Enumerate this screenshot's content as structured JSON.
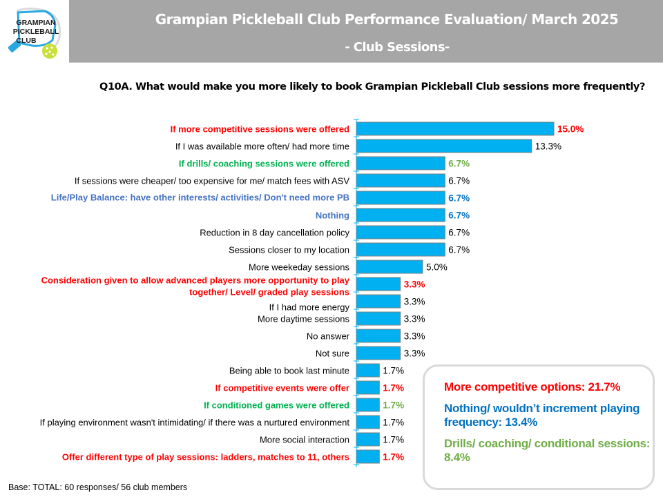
{
  "header": {
    "title": "Grampian Pickleball Club Performance Evaluation/ March 2025",
    "subtitle": "- Club Sessions-"
  },
  "logo": {
    "line1": "GRAMPIAN",
    "line2": "PICKLEBALL",
    "line3": "CLUB",
    "icon": "pickleball-paddle-and-ball-icon"
  },
  "question": "Q10A. What would make you more likely to book Grampian Pickleball Club sessions more frequently?",
  "colors": {
    "bar": "#00b0f0",
    "bar_border": "#7f7f7f",
    "red": "#ff0000",
    "green_label": "#00b050",
    "green_value": "#70ad47",
    "blue_label": "#4472c4",
    "blue_value": "#0070c0",
    "black": "#000000"
  },
  "chart_data": {
    "type": "bar",
    "orientation": "horizontal",
    "title": "Q10A. What would make you more likely to book Grampian Pickleball Club sessions more frequently?",
    "xlabel": "",
    "ylabel": "",
    "unit": "%",
    "xlim": [
      0,
      15
    ],
    "grid": false,
    "categories": [
      "If more competitive sessions were offered",
      "If I was available more often/ had more time",
      "If drills/ coaching sessions were offered",
      "If sessions were cheaper/ too expensive for me/ match fees with ASV",
      "Life/Play Balance: have other interests/ activities/ Don't need more PB",
      "Nothing",
      "Reduction in 8 day cancellation policy",
      "Sessions closer to my location",
      "More weekeday sessions",
      "Consideration given to allow advanced players more opportunity to play together/ Level/ graded play sessions",
      "If I had more energy",
      "More daytime sessions",
      "No answer",
      "Not sure",
      "Being able to book last minute",
      "If competitive events were offer",
      "If conditioned games were offered",
      "If playing environment wasn't intimidating/ if there was a nurtured environment",
      "More social interaction",
      "Offer different type of play  sessions: ladders, matches to 11, others"
    ],
    "values": [
      15.0,
      13.3,
      6.7,
      6.7,
      6.7,
      6.7,
      6.7,
      6.7,
      5.0,
      3.3,
      3.3,
      3.3,
      3.3,
      3.3,
      1.7,
      1.7,
      1.7,
      1.7,
      1.7,
      1.7
    ],
    "value_labels": [
      "15.0%",
      "13.3%",
      "6.7%",
      "6.7%",
      "6.7%",
      "6.7%",
      "6.7%",
      "6.7%",
      "5.0%",
      "3.3%",
      "3.3%",
      "3.3%",
      "3.3%",
      "3.3%",
      "1.7%",
      "1.7%",
      "1.7%",
      "1.7%",
      "1.7%",
      "1.7%"
    ],
    "highlight": [
      "red",
      "none",
      "green",
      "none",
      "blue",
      "blue",
      "none",
      "none",
      "none",
      "red",
      "none",
      "none",
      "none",
      "none",
      "none",
      "red",
      "green",
      "none",
      "none",
      "red"
    ]
  },
  "summary": {
    "competitive": "More competitive options: 21.7%",
    "nothing": "Nothing/ wouldn’t increment playing frequency: 13.4%",
    "drills": "Drills/ coaching/ conditional sessions: 8.4%"
  },
  "footer": {
    "base": "Base: TOTAL: 60 responses/ 56 club members"
  }
}
